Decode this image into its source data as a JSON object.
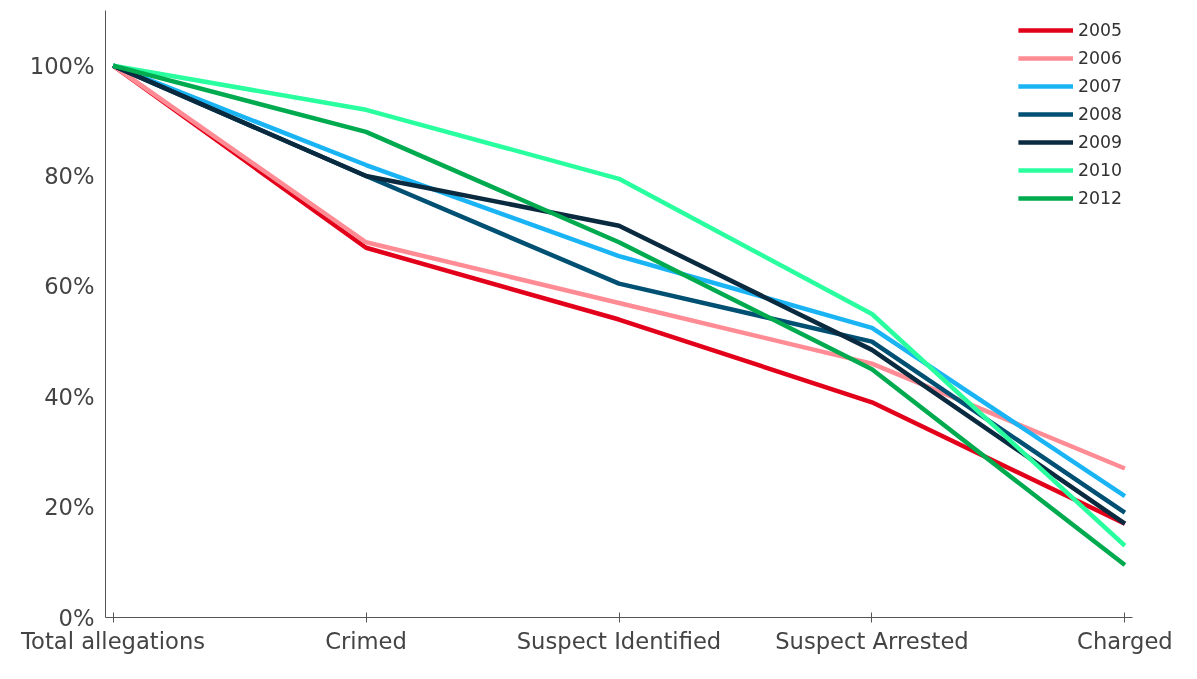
{
  "chart_data": {
    "type": "line",
    "categories": [
      "Total allegations",
      "Crimed",
      "Suspect Identified",
      "Suspect Arrested",
      "Charged"
    ],
    "ylim": [
      0,
      110
    ],
    "yticks": [
      {
        "value": 0,
        "label": "0%"
      },
      {
        "value": 20,
        "label": "20%"
      },
      {
        "value": 40,
        "label": "40%"
      },
      {
        "value": 60,
        "label": "60%"
      },
      {
        "value": 80,
        "label": "80%"
      },
      {
        "value": 100,
        "label": "100%"
      }
    ],
    "grid": false,
    "legend": "top right",
    "marker": "none",
    "line_style": "solid",
    "series": [
      {
        "name": "2005",
        "color": "#e2001a",
        "values": [
          100,
          67,
          54,
          39,
          17
        ]
      },
      {
        "name": "2006",
        "color": "#ff8c94",
        "values": [
          100,
          68,
          57,
          46,
          27
        ]
      },
      {
        "name": "2007",
        "color": "#1ab4f5",
        "values": [
          100,
          82,
          65.5,
          52.5,
          22
        ]
      },
      {
        "name": "2008",
        "color": "#005073",
        "values": [
          100,
          80,
          60.5,
          50,
          19
        ]
      },
      {
        "name": "2009",
        "color": "#0a2a3f",
        "values": [
          100,
          80,
          71,
          48.5,
          17
        ]
      },
      {
        "name": "2010",
        "color": "#2affa0",
        "values": [
          100,
          92,
          79.5,
          55,
          13
        ]
      },
      {
        "name": "2012",
        "color": "#00aa4f",
        "values": [
          100,
          88,
          68,
          45,
          9.5
        ]
      }
    ]
  }
}
